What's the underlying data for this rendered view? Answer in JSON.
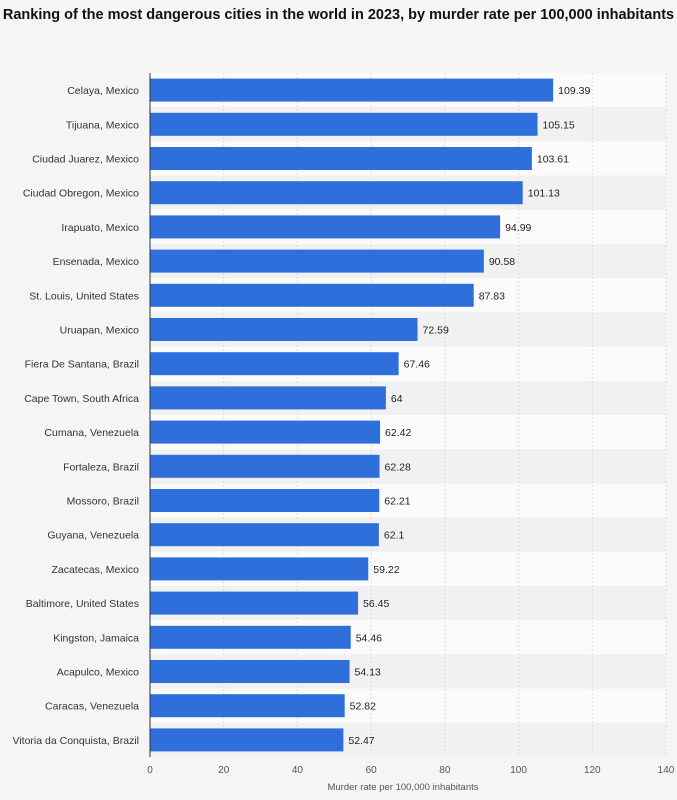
{
  "chart_data": {
    "type": "bar",
    "orientation": "horizontal",
    "title": "Ranking of the most dangerous cities in the world in 2023, by murder rate per 100,000 inhabitants",
    "xlabel": "Murder rate per 100,000 inhabitants",
    "ylabel": "",
    "xlim": [
      0,
      140
    ],
    "xticks": [
      0,
      20,
      40,
      60,
      80,
      100,
      120,
      140
    ],
    "grid": true,
    "bar_color": "#2e6fdb",
    "categories": [
      "Celaya, Mexico",
      "Tijuana, Mexico",
      "Ciudad Juarez, Mexico",
      "Ciudad Obregon, Mexico",
      "Irapuato, Mexico",
      "Ensenada, Mexico",
      "St. Louis, United States",
      "Uruapan, Mexico",
      "Fiera De Santana, Brazil",
      "Cape Town, South Africa",
      "Cumana, Venezuela",
      "Fortaleza, Brazil",
      "Mossoro, Brazil",
      "Guyana, Venezuela",
      "Zacatecas, Mexico",
      "Baltimore, United States",
      "Kingston, Jamaica",
      "Acapulco, Mexico",
      "Caracas, Venezuela",
      "Vitoria da Conquista, Brazil"
    ],
    "values": [
      109.39,
      105.15,
      103.61,
      101.13,
      94.99,
      90.58,
      87.83,
      72.59,
      67.46,
      64,
      62.42,
      62.28,
      62.21,
      62.1,
      59.22,
      56.45,
      54.46,
      54.13,
      52.82,
      52.47
    ],
    "value_labels": [
      "109.39",
      "105.15",
      "103.61",
      "101.13",
      "94.99",
      "90.58",
      "87.83",
      "72.59",
      "67.46",
      "64",
      "62.42",
      "62.28",
      "62.21",
      "62.1",
      "59.22",
      "56.45",
      "54.46",
      "54.13",
      "52.82",
      "52.47"
    ]
  }
}
